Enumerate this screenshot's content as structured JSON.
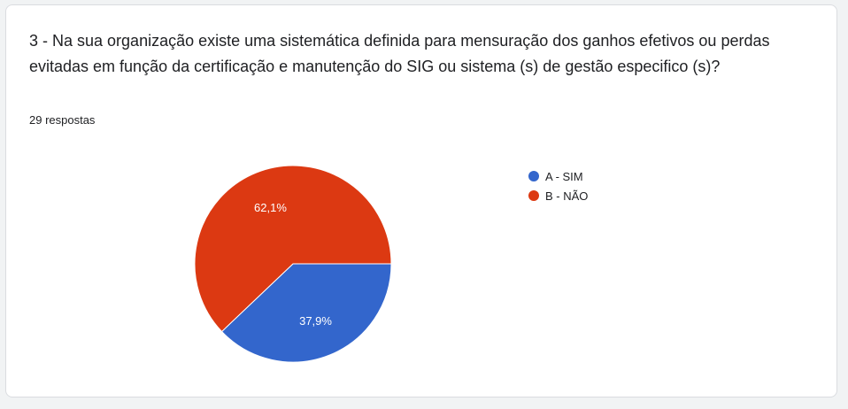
{
  "question": {
    "title": "3 - Na sua organização existe uma sistemática definida para mensuração dos ganhos efetivos ou perdas evitadas em função da certificação e manutenção do SIG ou sistema (s) de gestão especifico (s)?",
    "responses": "29 respostas"
  },
  "chart_data": {
    "type": "pie",
    "categories": [
      "A - SIM",
      "B - NÃO"
    ],
    "values": [
      37.9,
      62.1
    ],
    "labels": [
      "37,9%",
      "62,1%"
    ],
    "colors": [
      "#3366cc",
      "#dc3912"
    ],
    "legend_position": "right"
  }
}
